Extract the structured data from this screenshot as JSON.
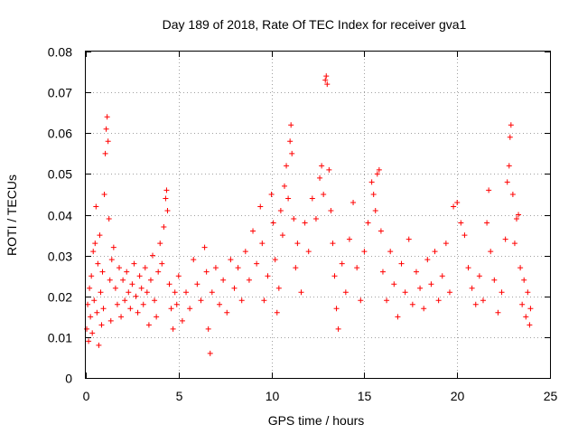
{
  "chart_data": {
    "type": "scatter",
    "title": "Day 189 of 2018, Rate Of TEC Index for receiver gva1",
    "xlabel": "GPS time / hours",
    "ylabel": "ROTI / TECUs",
    "xlim": [
      0,
      25
    ],
    "ylim": [
      0,
      0.08
    ],
    "xticks": [
      0,
      5,
      10,
      15,
      20,
      25
    ],
    "xtick_labels": [
      "0",
      "5",
      "10",
      "15",
      "20",
      "25"
    ],
    "yticks": [
      0,
      0.01,
      0.02,
      0.03,
      0.04,
      0.05,
      0.06,
      0.07,
      0.08
    ],
    "ytick_labels": [
      "0",
      "0.01",
      "0.02",
      "0.03",
      "0.04",
      "0.05",
      "0.06",
      "0.07",
      "0.08"
    ],
    "grid": true,
    "marker": "plus",
    "color": "#ff0000",
    "series": [
      {
        "points": [
          [
            0.05,
            0.012
          ],
          [
            0.1,
            0.018
          ],
          [
            0.15,
            0.009
          ],
          [
            0.2,
            0.022
          ],
          [
            0.25,
            0.015
          ],
          [
            0.3,
            0.025
          ],
          [
            0.35,
            0.011
          ],
          [
            0.4,
            0.031
          ],
          [
            0.45,
            0.019
          ],
          [
            0.5,
            0.033
          ],
          [
            0.55,
            0.042
          ],
          [
            0.6,
            0.016
          ],
          [
            0.65,
            0.028
          ],
          [
            0.7,
            0.008
          ],
          [
            0.75,
            0.035
          ],
          [
            0.8,
            0.021
          ],
          [
            0.85,
            0.013
          ],
          [
            0.9,
            0.026
          ],
          [
            0.95,
            0.017
          ],
          [
            1.0,
            0.045
          ],
          [
            1.05,
            0.055
          ],
          [
            1.1,
            0.061
          ],
          [
            1.15,
            0.064
          ],
          [
            1.2,
            0.058
          ],
          [
            1.25,
            0.039
          ],
          [
            1.3,
            0.024
          ],
          [
            1.35,
            0.014
          ],
          [
            1.4,
            0.029
          ],
          [
            1.5,
            0.032
          ],
          [
            1.6,
            0.022
          ],
          [
            1.7,
            0.018
          ],
          [
            1.8,
            0.027
          ],
          [
            1.9,
            0.015
          ],
          [
            2.0,
            0.024
          ],
          [
            2.1,
            0.019
          ],
          [
            2.2,
            0.026
          ],
          [
            2.3,
            0.021
          ],
          [
            2.4,
            0.017
          ],
          [
            2.5,
            0.023
          ],
          [
            2.6,
            0.028
          ],
          [
            2.7,
            0.02
          ],
          [
            2.8,
            0.016
          ],
          [
            2.9,
            0.025
          ],
          [
            3.0,
            0.022
          ],
          [
            3.1,
            0.018
          ],
          [
            3.2,
            0.027
          ],
          [
            3.3,
            0.021
          ],
          [
            3.4,
            0.013
          ],
          [
            3.5,
            0.024
          ],
          [
            3.6,
            0.03
          ],
          [
            3.7,
            0.019
          ],
          [
            3.8,
            0.015
          ],
          [
            3.9,
            0.026
          ],
          [
            4.0,
            0.033
          ],
          [
            4.1,
            0.028
          ],
          [
            4.2,
            0.037
          ],
          [
            4.3,
            0.044
          ],
          [
            4.35,
            0.046
          ],
          [
            4.4,
            0.041
          ],
          [
            4.5,
            0.023
          ],
          [
            4.6,
            0.017
          ],
          [
            4.7,
            0.012
          ],
          [
            4.8,
            0.021
          ],
          [
            4.9,
            0.018
          ],
          [
            5.0,
            0.025
          ],
          [
            5.2,
            0.014
          ],
          [
            5.4,
            0.021
          ],
          [
            5.6,
            0.017
          ],
          [
            5.8,
            0.029
          ],
          [
            6.0,
            0.023
          ],
          [
            6.2,
            0.019
          ],
          [
            6.4,
            0.032
          ],
          [
            6.5,
            0.026
          ],
          [
            6.6,
            0.012
          ],
          [
            6.7,
            0.006
          ],
          [
            6.8,
            0.021
          ],
          [
            7.0,
            0.027
          ],
          [
            7.2,
            0.018
          ],
          [
            7.4,
            0.024
          ],
          [
            7.6,
            0.016
          ],
          [
            7.8,
            0.029
          ],
          [
            8.0,
            0.022
          ],
          [
            8.2,
            0.027
          ],
          [
            8.4,
            0.019
          ],
          [
            8.6,
            0.031
          ],
          [
            8.8,
            0.024
          ],
          [
            9.0,
            0.036
          ],
          [
            9.2,
            0.028
          ],
          [
            9.4,
            0.042
          ],
          [
            9.5,
            0.033
          ],
          [
            9.6,
            0.019
          ],
          [
            9.8,
            0.025
          ],
          [
            10.0,
            0.045
          ],
          [
            10.1,
            0.038
          ],
          [
            10.2,
            0.029
          ],
          [
            10.3,
            0.016
          ],
          [
            10.4,
            0.022
          ],
          [
            10.5,
            0.041
          ],
          [
            10.6,
            0.035
          ],
          [
            10.7,
            0.047
          ],
          [
            10.8,
            0.052
          ],
          [
            10.9,
            0.044
          ],
          [
            11.0,
            0.058
          ],
          [
            11.05,
            0.062
          ],
          [
            11.1,
            0.055
          ],
          [
            11.2,
            0.039
          ],
          [
            11.3,
            0.027
          ],
          [
            11.4,
            0.033
          ],
          [
            11.6,
            0.021
          ],
          [
            11.8,
            0.038
          ],
          [
            12.0,
            0.031
          ],
          [
            12.2,
            0.044
          ],
          [
            12.4,
            0.039
          ],
          [
            12.6,
            0.049
          ],
          [
            12.7,
            0.052
          ],
          [
            12.8,
            0.045
          ],
          [
            12.9,
            0.073
          ],
          [
            12.95,
            0.074
          ],
          [
            13.0,
            0.072
          ],
          [
            13.1,
            0.051
          ],
          [
            13.2,
            0.041
          ],
          [
            13.3,
            0.033
          ],
          [
            13.4,
            0.025
          ],
          [
            13.5,
            0.017
          ],
          [
            13.6,
            0.012
          ],
          [
            13.8,
            0.028
          ],
          [
            14.0,
            0.021
          ],
          [
            14.2,
            0.034
          ],
          [
            14.4,
            0.043
          ],
          [
            14.6,
            0.027
          ],
          [
            14.8,
            0.019
          ],
          [
            15.0,
            0.031
          ],
          [
            15.2,
            0.038
          ],
          [
            15.4,
            0.048
          ],
          [
            15.5,
            0.045
          ],
          [
            15.6,
            0.041
          ],
          [
            15.7,
            0.05
          ],
          [
            15.8,
            0.051
          ],
          [
            15.9,
            0.036
          ],
          [
            16.0,
            0.026
          ],
          [
            16.2,
            0.019
          ],
          [
            16.4,
            0.031
          ],
          [
            16.6,
            0.023
          ],
          [
            16.8,
            0.015
          ],
          [
            17.0,
            0.028
          ],
          [
            17.2,
            0.021
          ],
          [
            17.4,
            0.034
          ],
          [
            17.6,
            0.018
          ],
          [
            17.8,
            0.026
          ],
          [
            18.0,
            0.022
          ],
          [
            18.2,
            0.017
          ],
          [
            18.4,
            0.029
          ],
          [
            18.6,
            0.023
          ],
          [
            18.8,
            0.031
          ],
          [
            19.0,
            0.019
          ],
          [
            19.2,
            0.025
          ],
          [
            19.4,
            0.033
          ],
          [
            19.6,
            0.021
          ],
          [
            19.8,
            0.042
          ],
          [
            20.0,
            0.043
          ],
          [
            20.2,
            0.038
          ],
          [
            20.4,
            0.035
          ],
          [
            20.6,
            0.027
          ],
          [
            20.8,
            0.022
          ],
          [
            21.0,
            0.018
          ],
          [
            21.2,
            0.025
          ],
          [
            21.4,
            0.019
          ],
          [
            21.6,
            0.038
          ],
          [
            21.7,
            0.046
          ],
          [
            21.8,
            0.031
          ],
          [
            22.0,
            0.024
          ],
          [
            22.2,
            0.016
          ],
          [
            22.4,
            0.021
          ],
          [
            22.6,
            0.034
          ],
          [
            22.7,
            0.048
          ],
          [
            22.8,
            0.052
          ],
          [
            22.85,
            0.059
          ],
          [
            22.9,
            0.062
          ],
          [
            23.0,
            0.045
          ],
          [
            23.1,
            0.033
          ],
          [
            23.2,
            0.039
          ],
          [
            23.3,
            0.04
          ],
          [
            23.4,
            0.027
          ],
          [
            23.5,
            0.018
          ],
          [
            23.6,
            0.024
          ],
          [
            23.7,
            0.015
          ],
          [
            23.8,
            0.021
          ],
          [
            23.9,
            0.013
          ],
          [
            23.95,
            0.017
          ]
        ]
      }
    ]
  }
}
